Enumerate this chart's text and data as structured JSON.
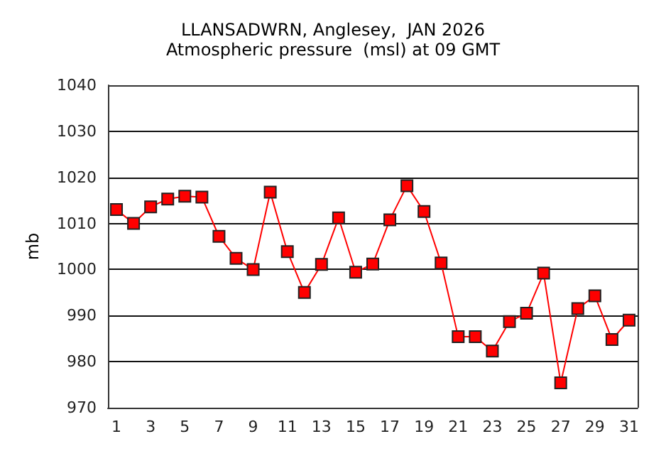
{
  "chart_data": {
    "type": "line",
    "title": "LLANSADWRN, Anglesey,  JAN 2026",
    "subtitle": "Atmospheric pressure  (msl) at 09 GMT",
    "ylabel": "mb",
    "x": [
      1,
      2,
      3,
      4,
      5,
      6,
      7,
      8,
      9,
      10,
      11,
      12,
      13,
      14,
      15,
      16,
      17,
      18,
      19,
      20,
      21,
      22,
      23,
      24,
      25,
      26,
      27,
      28,
      29,
      30,
      31
    ],
    "series": [
      {
        "color": "#ff0000",
        "values": [
          1013,
          1010,
          1013.6,
          1015.3,
          1015.9,
          1015.7,
          1007.2,
          1002.4,
          1000,
          1016.8,
          1003.9,
          995,
          1001.1,
          1011.2,
          999.4,
          1001.2,
          1010.8,
          1018.2,
          1012.6,
          1001.4,
          985.4,
          985.4,
          982.3,
          988.7,
          990.5,
          999.2,
          975.4,
          991.5,
          994.3,
          984.8,
          989
        ]
      }
    ],
    "xlim": [
      0.5,
      31.5
    ],
    "xticks": [
      1,
      3,
      5,
      7,
      9,
      11,
      13,
      15,
      17,
      19,
      21,
      23,
      25,
      27,
      29,
      31
    ],
    "ylim": [
      970,
      1040
    ],
    "yticks": [
      970,
      980,
      990,
      1000,
      1010,
      1020,
      1030,
      1040
    ],
    "grid": "y",
    "marker": "square",
    "line_style": "solid"
  }
}
